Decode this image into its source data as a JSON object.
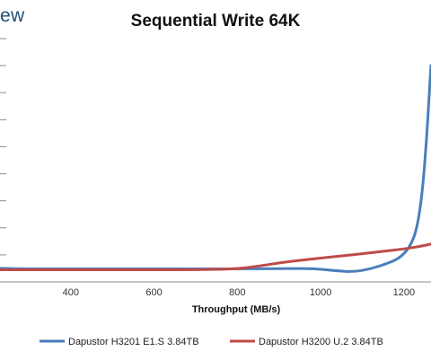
{
  "logo_text": "ew",
  "chart_data": {
    "type": "line",
    "title": "Sequential Write 64K",
    "xlabel": "Throughput (MB/s)",
    "ylabel": "",
    "xlim": [
      230,
      1265
    ],
    "ylim": [
      0,
      9.2
    ],
    "x_ticks": [
      400,
      600,
      800,
      1000,
      1200
    ],
    "y_gridlines": [
      1,
      2,
      3,
      4,
      5,
      6,
      7,
      8,
      9
    ],
    "grid": "horizontal",
    "legend_position": "bottom",
    "series": [
      {
        "name": "Dapustor H3201 E1.S 3.84TB",
        "color": "#4a7ebb",
        "points": [
          [
            230,
            0.5
          ],
          [
            300,
            0.48
          ],
          [
            400,
            0.48
          ],
          [
            500,
            0.48
          ],
          [
            600,
            0.48
          ],
          [
            700,
            0.48
          ],
          [
            800,
            0.48
          ],
          [
            900,
            0.49
          ],
          [
            980,
            0.5
          ],
          [
            1030,
            0.42
          ],
          [
            1080,
            0.37
          ],
          [
            1120,
            0.48
          ],
          [
            1160,
            0.68
          ],
          [
            1190,
            0.88
          ],
          [
            1215,
            1.3
          ],
          [
            1232,
            2.0
          ],
          [
            1245,
            3.4
          ],
          [
            1255,
            5.4
          ],
          [
            1262,
            7.3
          ],
          [
            1265,
            8.0
          ]
        ]
      },
      {
        "name": "Dapustor H3200 U.2 3.84TB",
        "color": "#be4b48",
        "points": [
          [
            230,
            0.45
          ],
          [
            300,
            0.45
          ],
          [
            400,
            0.45
          ],
          [
            500,
            0.45
          ],
          [
            600,
            0.45
          ],
          [
            700,
            0.45
          ],
          [
            800,
            0.48
          ],
          [
            850,
            0.58
          ],
          [
            900,
            0.7
          ],
          [
            950,
            0.8
          ],
          [
            1000,
            0.88
          ],
          [
            1050,
            0.96
          ],
          [
            1100,
            1.04
          ],
          [
            1150,
            1.13
          ],
          [
            1200,
            1.22
          ],
          [
            1240,
            1.32
          ],
          [
            1265,
            1.4
          ]
        ]
      }
    ]
  }
}
